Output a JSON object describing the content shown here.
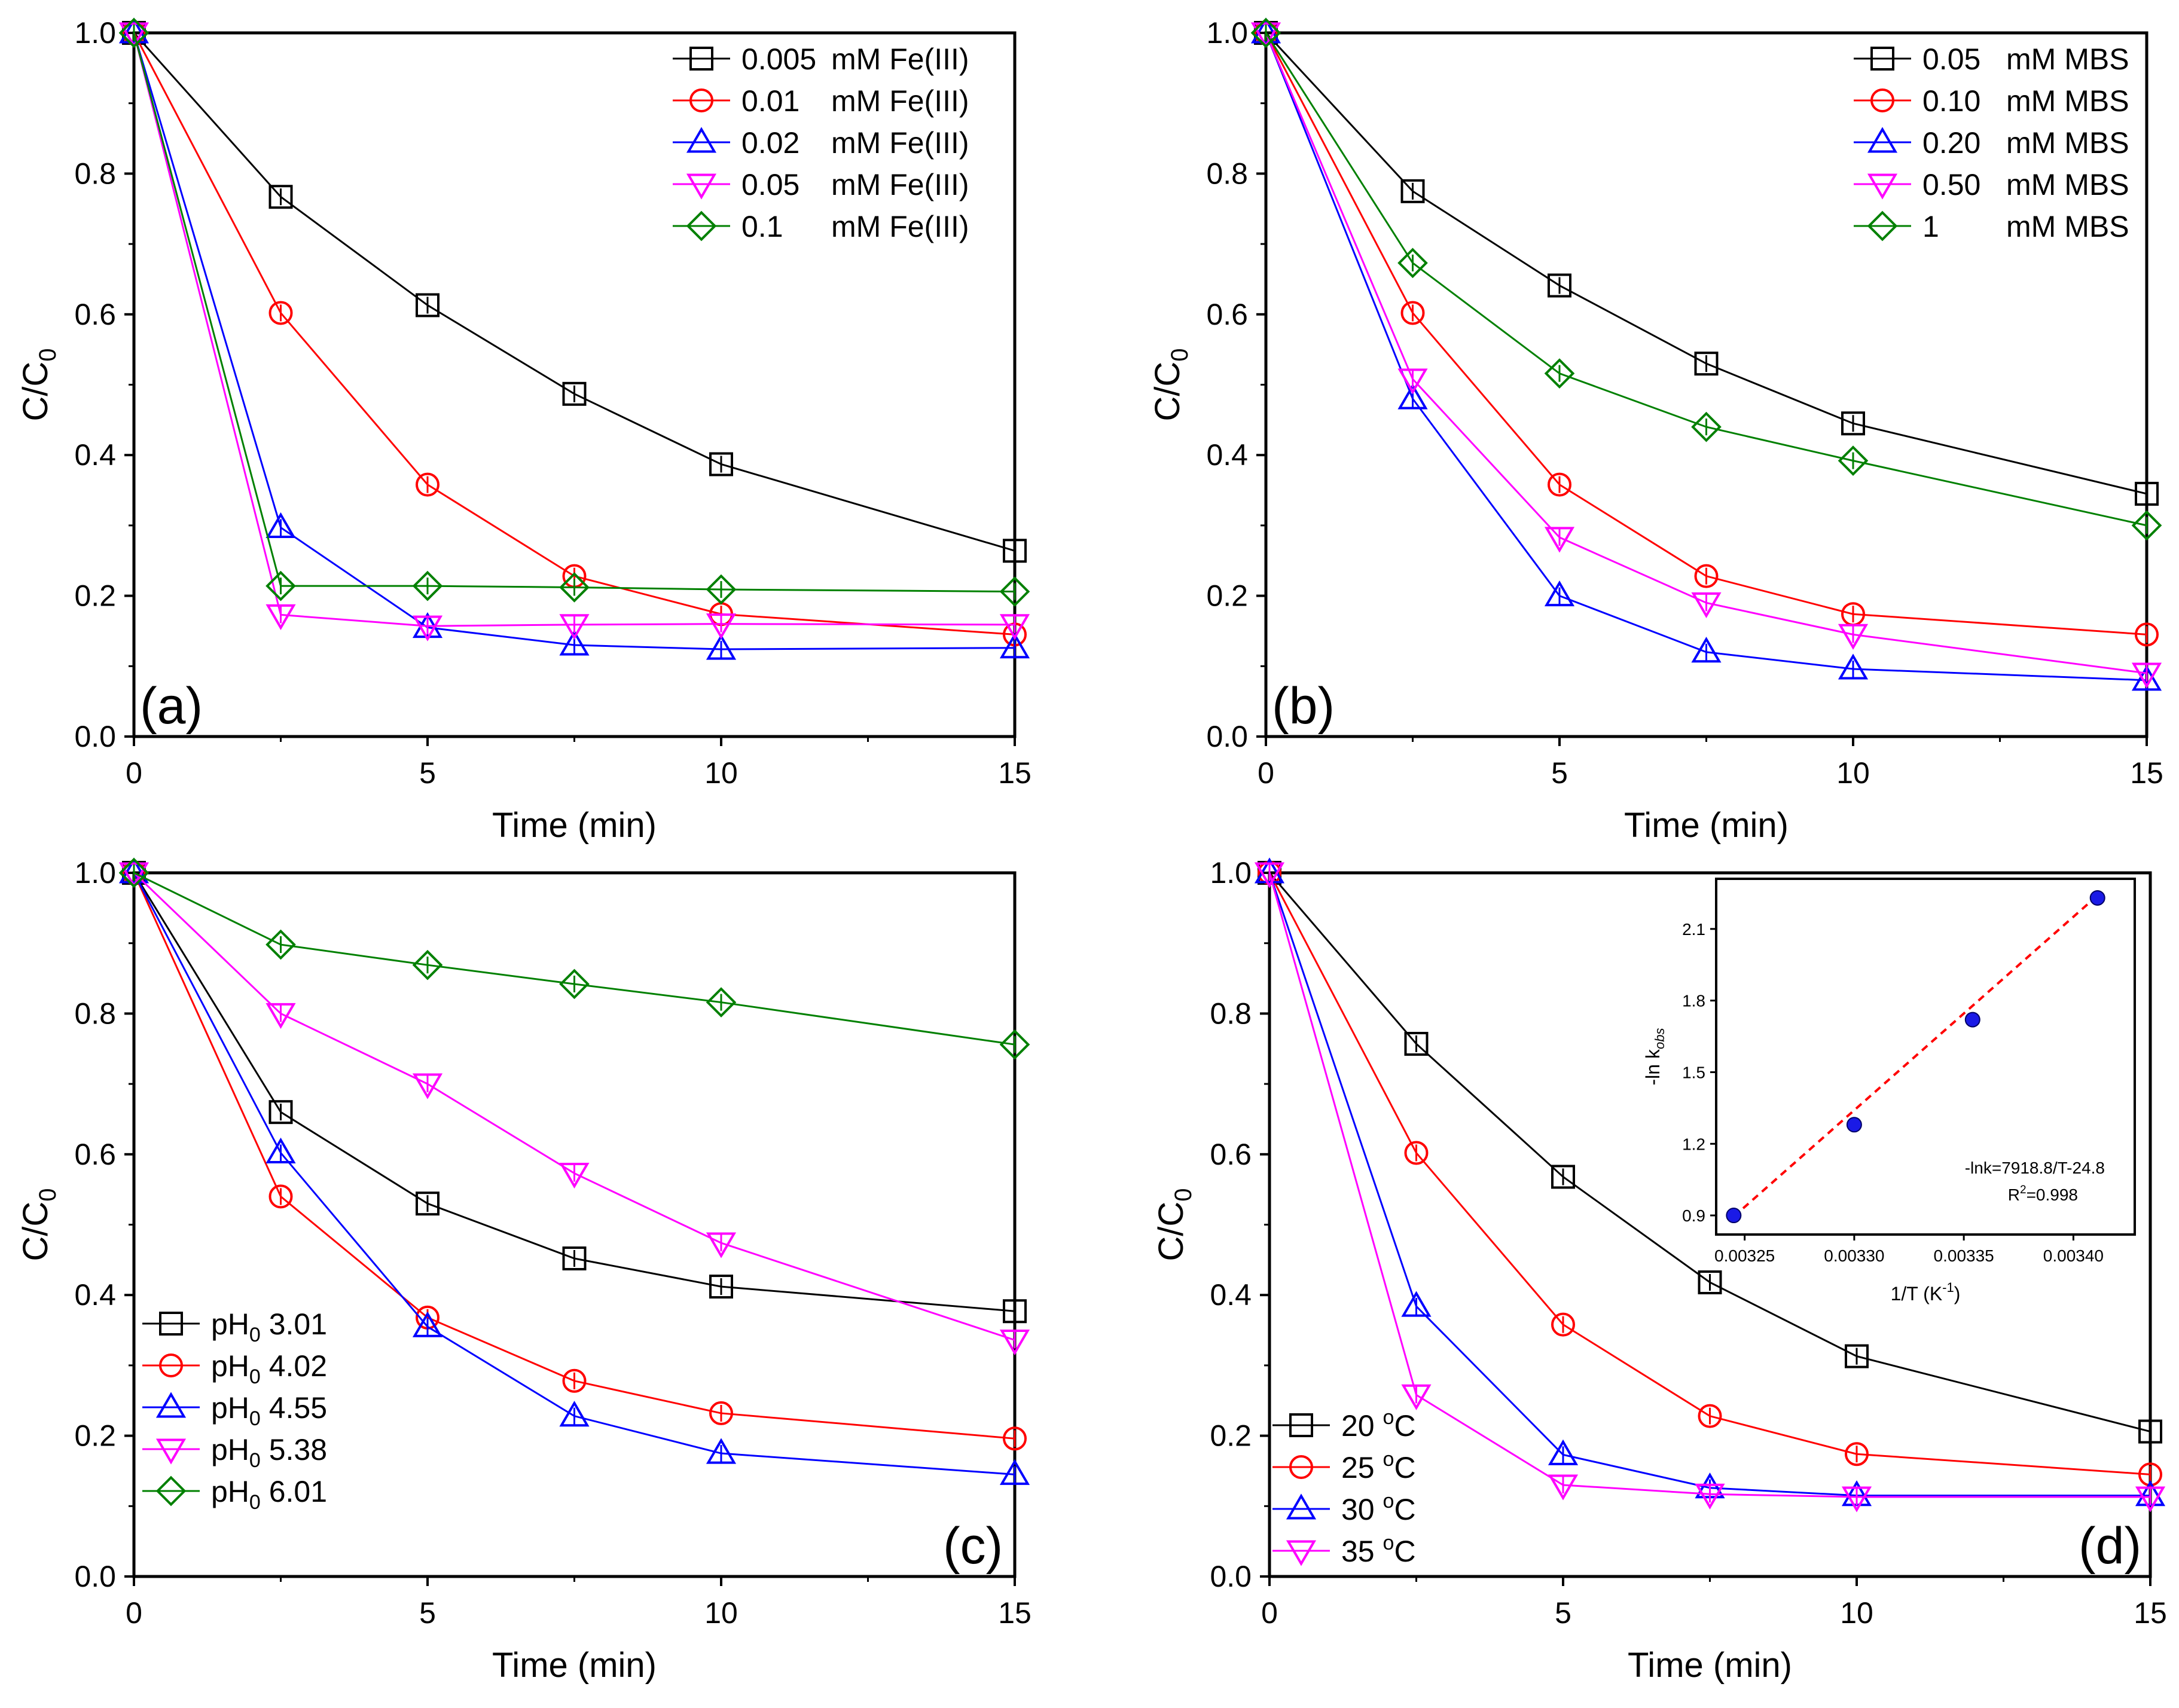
{
  "chart_data": [
    {
      "type": "line",
      "panel_label": "(a)",
      "xlabel": "Time (min)",
      "ylabel": "C/C",
      "ylabel_sub": "0",
      "xlim": [
        0,
        15
      ],
      "ylim": [
        0,
        1.0
      ],
      "xticks": [
        "0",
        "5",
        "10",
        "15"
      ],
      "xtick_values": [
        0,
        5,
        10,
        15
      ],
      "yticks": [
        "0.0",
        "0.2",
        "0.4",
        "0.6",
        "0.8",
        "1.0"
      ],
      "ytick_values": [
        0,
        0.2,
        0.4,
        0.6,
        0.8,
        1.0
      ],
      "legend_position": "top-right",
      "x": [
        0,
        2.5,
        5,
        7.5,
        10,
        15
      ],
      "series": [
        {
          "name": "0.005 mM Fe(III)",
          "legend_value": "0.005",
          "legend_unit": "mM Fe(III)",
          "color": "#000000",
          "marker": "square",
          "values": [
            1.0,
            0.767,
            0.613,
            0.487,
            0.387,
            0.264
          ]
        },
        {
          "name": "0.01 mM Fe(III)",
          "legend_value": "0.01",
          "legend_unit": "mM Fe(III)",
          "color": "#ff0000",
          "marker": "circle",
          "values": [
            1.0,
            0.602,
            0.358,
            0.228,
            0.174,
            0.145
          ]
        },
        {
          "name": "0.02 mM Fe(III)",
          "legend_value": "0.02",
          "legend_unit": "mM Fe(III)",
          "color": "#0000ff",
          "marker": "triangle-up",
          "values": [
            1.0,
            0.297,
            0.155,
            0.13,
            0.124,
            0.126
          ]
        },
        {
          "name": "0.05 mM Fe(III)",
          "legend_value": "0.05",
          "legend_unit": "mM Fe(III)",
          "color": "#ff00ff",
          "marker": "triangle-down",
          "values": [
            1.0,
            0.173,
            0.157,
            0.159,
            0.16,
            0.159
          ]
        },
        {
          "name": "0.1 mM Fe(III)",
          "legend_value": "0.1",
          "legend_unit": "mM Fe(III)",
          "color": "#008000",
          "marker": "diamond",
          "values": [
            1.0,
            0.214,
            0.214,
            0.212,
            0.209,
            0.206
          ]
        }
      ]
    },
    {
      "type": "line",
      "panel_label": "(b)",
      "xlabel": "Time (min)",
      "ylabel": "C/C",
      "ylabel_sub": "0",
      "xlim": [
        0,
        15
      ],
      "ylim": [
        0,
        1.0
      ],
      "xticks": [
        "0",
        "5",
        "10",
        "15"
      ],
      "xtick_values": [
        0,
        5,
        10,
        15
      ],
      "yticks": [
        "0.0",
        "0.2",
        "0.4",
        "0.6",
        "0.8",
        "1.0"
      ],
      "ytick_values": [
        0,
        0.2,
        0.4,
        0.6,
        0.8,
        1.0
      ],
      "legend_position": "top-right",
      "x": [
        0,
        2.5,
        5,
        7.5,
        10,
        15
      ],
      "series": [
        {
          "name": "0.05 mM MBS",
          "legend_value": "0.05",
          "legend_unit": "mM MBS",
          "color": "#000000",
          "marker": "square",
          "values": [
            1.0,
            0.775,
            0.641,
            0.53,
            0.445,
            0.345
          ]
        },
        {
          "name": "0.10 mM MBS",
          "legend_value": "0.10",
          "legend_unit": "mM MBS",
          "color": "#ff0000",
          "marker": "circle",
          "values": [
            1.0,
            0.602,
            0.358,
            0.228,
            0.174,
            0.145
          ]
        },
        {
          "name": "0.20 mM MBS",
          "legend_value": "0.20",
          "legend_unit": "mM MBS",
          "color": "#0000ff",
          "marker": "triangle-up",
          "values": [
            1.0,
            0.48,
            0.2,
            0.12,
            0.096,
            0.08
          ]
        },
        {
          "name": "0.50 mM MBS",
          "legend_value": "0.50",
          "legend_unit": "mM MBS",
          "color": "#ff00ff",
          "marker": "triangle-down",
          "values": [
            1.0,
            0.508,
            0.283,
            0.19,
            0.145,
            0.09
          ]
        },
        {
          "name": "1 mM MBS",
          "legend_value": "1",
          "legend_unit": "mM MBS",
          "color": "#008000",
          "marker": "diamond",
          "values": [
            1.0,
            0.673,
            0.516,
            0.44,
            0.392,
            0.3
          ]
        }
      ]
    },
    {
      "type": "line",
      "panel_label": "(c)",
      "xlabel": "Time (min)",
      "ylabel": "C/C",
      "ylabel_sub": "0",
      "xlim": [
        0,
        15
      ],
      "ylim": [
        0,
        1.0
      ],
      "xticks": [
        "0",
        "5",
        "10",
        "15"
      ],
      "xtick_values": [
        0,
        5,
        10,
        15
      ],
      "yticks": [
        "0.0",
        "0.2",
        "0.4",
        "0.6",
        "0.8",
        "1.0"
      ],
      "ytick_values": [
        0,
        0.2,
        0.4,
        0.6,
        0.8,
        1.0
      ],
      "legend_position": "bottom-left",
      "x": [
        0,
        2.5,
        5,
        7.5,
        10,
        15
      ],
      "series": [
        {
          "name": "pH0 3.01",
          "legend_prefix": "pH",
          "legend_sub": "0",
          "legend_value": "3.01",
          "color": "#000000",
          "marker": "square",
          "values": [
            1.0,
            0.66,
            0.53,
            0.452,
            0.412,
            0.377
          ]
        },
        {
          "name": "pH0 4.02",
          "legend_prefix": "pH",
          "legend_sub": "0",
          "legend_value": "4.02",
          "color": "#ff0000",
          "marker": "circle",
          "values": [
            1.0,
            0.54,
            0.368,
            0.278,
            0.232,
            0.196
          ]
        },
        {
          "name": "pH0 4.55",
          "legend_prefix": "pH",
          "legend_sub": "0",
          "legend_value": "4.55",
          "color": "#0000ff",
          "marker": "triangle-up",
          "values": [
            1.0,
            0.602,
            0.355,
            0.228,
            0.175,
            0.145
          ]
        },
        {
          "name": "pH0 5.38",
          "legend_prefix": "pH",
          "legend_sub": "0",
          "legend_value": "5.38",
          "color": "#ff00ff",
          "marker": "triangle-down",
          "values": [
            1.0,
            0.8,
            0.7,
            0.573,
            0.474,
            0.336
          ]
        },
        {
          "name": "pH0 6.01",
          "legend_prefix": "pH",
          "legend_sub": "0",
          "legend_value": "6.01",
          "color": "#008000",
          "marker": "diamond",
          "values": [
            1.0,
            0.898,
            0.869,
            0.842,
            0.816,
            0.756
          ]
        }
      ]
    },
    {
      "type": "line",
      "panel_label": "(d)",
      "xlabel": "Time (min)",
      "ylabel": "C/C",
      "ylabel_sub": "0",
      "xlim": [
        0,
        15
      ],
      "ylim": [
        0,
        1.0
      ],
      "xticks": [
        "0",
        "5",
        "10",
        "15"
      ],
      "xtick_values": [
        0,
        5,
        10,
        15
      ],
      "yticks": [
        "0.0",
        "0.2",
        "0.4",
        "0.6",
        "0.8",
        "1.0"
      ],
      "ytick_values": [
        0,
        0.2,
        0.4,
        0.6,
        0.8,
        1.0
      ],
      "legend_position": "bottom-left",
      "x": [
        0,
        2.5,
        5,
        7.5,
        10,
        15
      ],
      "series": [
        {
          "name": "20 oC",
          "legend_value": "20",
          "legend_sup": "o",
          "legend_unit": "C",
          "color": "#000000",
          "marker": "square",
          "values": [
            1.0,
            0.757,
            0.568,
            0.418,
            0.313,
            0.206
          ]
        },
        {
          "name": "25 oC",
          "legend_value": "25",
          "legend_sup": "o",
          "legend_unit": "C",
          "color": "#ff0000",
          "marker": "circle",
          "values": [
            1.0,
            0.602,
            0.358,
            0.228,
            0.174,
            0.145
          ]
        },
        {
          "name": "30 oC",
          "legend_value": "30",
          "legend_sup": "o",
          "legend_unit": "C",
          "color": "#0000ff",
          "marker": "triangle-up",
          "values": [
            1.0,
            0.384,
            0.173,
            0.126,
            0.115,
            0.115
          ]
        },
        {
          "name": "35 oC",
          "legend_value": "35",
          "legend_sup": "o",
          "legend_unit": "C",
          "color": "#ff00ff",
          "marker": "triangle-down",
          "values": [
            1.0,
            0.258,
            0.13,
            0.117,
            0.113,
            0.113
          ]
        }
      ],
      "inset": {
        "type": "scatter",
        "xlabel": "1/T (K",
        "xlabel_sup": "-1",
        "xlabel_end": ")",
        "ylabel": "-ln k",
        "ylabel_sub": "obs",
        "xlim": [
          0.003237,
          0.003428
        ],
        "ylim": [
          0.82,
          2.31
        ],
        "xticks": [
          "0.00325",
          "0.00330",
          "0.00335",
          "0.00340"
        ],
        "xtick_values": [
          0.00325,
          0.0033,
          0.00335,
          0.0034
        ],
        "yticks": [
          "0.9",
          "1.2",
          "1.5",
          "1.8",
          "2.1"
        ],
        "ytick_values": [
          0.9,
          1.2,
          1.5,
          1.8,
          2.1
        ],
        "points": {
          "x": [
            0.003245,
            0.0033,
            0.003354,
            0.003411
          ],
          "y": [
            0.9,
            1.28,
            1.72,
            2.23
          ]
        },
        "point_color": "#1a1ae6",
        "fit_line": {
          "x": [
            0.003245,
            0.003411
          ],
          "y": [
            0.895,
            2.24
          ],
          "color": "#ff0000",
          "style": "dashed"
        },
        "equation": "-lnk=7918.8/T-24.8",
        "r2_label": "R",
        "r2_sup": "2",
        "r2_value": "=0.998"
      }
    }
  ]
}
